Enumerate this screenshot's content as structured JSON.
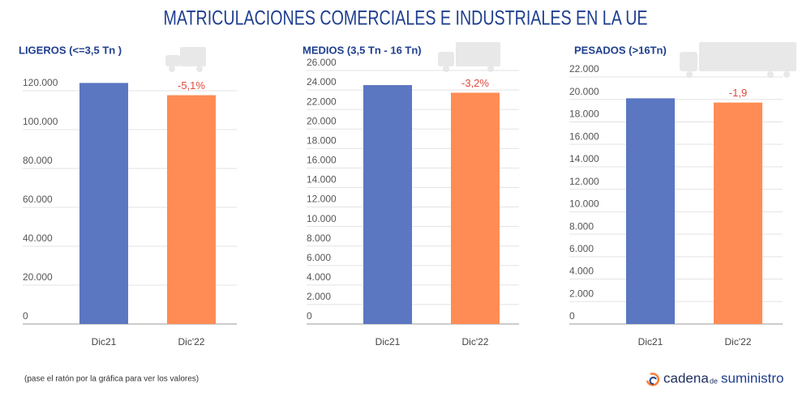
{
  "title": "MATRICULACIONES COMERCIALES E INDUSTRIALES EN LA UE",
  "footnote": "(pase el ratón por la gráfica para ver los valores)",
  "brand": [
    "cadena",
    "de",
    "suministro"
  ],
  "chart_data": [
    {
      "type": "bar",
      "title": "LIGEROS (<=3,5 Tn )",
      "categories": [
        "Dic21",
        "Dic'22"
      ],
      "values": [
        124000,
        117700
      ],
      "colors": [
        "#5b77c2",
        "#ff8c55"
      ],
      "annotation": "-5,1%",
      "ylim": [
        0,
        130000
      ],
      "yticks": [
        0,
        {
          "value": 20000,
          "label": "20.000"
        },
        {
          "value": 40000,
          "label": "40.000"
        },
        {
          "value": 60000,
          "label": "60.000"
        },
        {
          "value": 80000,
          "label": "80.000"
        },
        {
          "value": 100000,
          "label": "100.000"
        },
        {
          "value": 120000,
          "label": "120.000"
        }
      ],
      "grid": true
    },
    {
      "type": "bar",
      "title": "MEDIOS (3,5 Tn - 16 Tn)",
      "categories": [
        "Dic21",
        "Dic'22"
      ],
      "values": [
        24500,
        23720
      ],
      "colors": [
        "#5b77c2",
        "#ff8c55"
      ],
      "annotation": "-3,2%",
      "ylim": [
        0,
        26000
      ],
      "yticks": [
        0,
        {
          "value": 2000,
          "label": "2.000"
        },
        {
          "value": 4000,
          "label": "4.000"
        },
        {
          "value": 6000,
          "label": "6.000"
        },
        {
          "value": 8000,
          "label": "8.000"
        },
        {
          "value": 10000,
          "label": "10.000"
        },
        {
          "value": 12000,
          "label": "12.000"
        },
        {
          "value": 14000,
          "label": "14.000"
        },
        {
          "value": 16000,
          "label": "16.000"
        },
        {
          "value": 18000,
          "label": "18.000"
        },
        {
          "value": 20000,
          "label": "20.000"
        },
        {
          "value": 22000,
          "label": "22.000"
        },
        {
          "value": 24000,
          "label": "24.000"
        },
        {
          "value": 26000,
          "label": "26.000"
        }
      ],
      "grid": true
    },
    {
      "type": "bar",
      "title": "PESADOS (>16Tn)",
      "categories": [
        "Dic21",
        "Dic'22"
      ],
      "values": [
        20100,
        19720
      ],
      "colors": [
        "#5b77c2",
        "#ff8c55"
      ],
      "annotation": "-1,9",
      "ylim": [
        0,
        22000
      ],
      "yticks": [
        0,
        {
          "value": 2000,
          "label": "2.000"
        },
        {
          "value": 4000,
          "label": "4.000"
        },
        {
          "value": 6000,
          "label": "6.000"
        },
        {
          "value": 8000,
          "label": "8.000"
        },
        {
          "value": 10000,
          "label": "10.000"
        },
        {
          "value": 12000,
          "label": "12.000"
        },
        {
          "value": 14000,
          "label": "14.000"
        },
        {
          "value": 16000,
          "label": "16.000"
        },
        {
          "value": 18000,
          "label": "18.000"
        },
        {
          "value": 20000,
          "label": "20.000"
        },
        {
          "value": 22000,
          "label": "22.000"
        }
      ],
      "grid": true
    }
  ]
}
